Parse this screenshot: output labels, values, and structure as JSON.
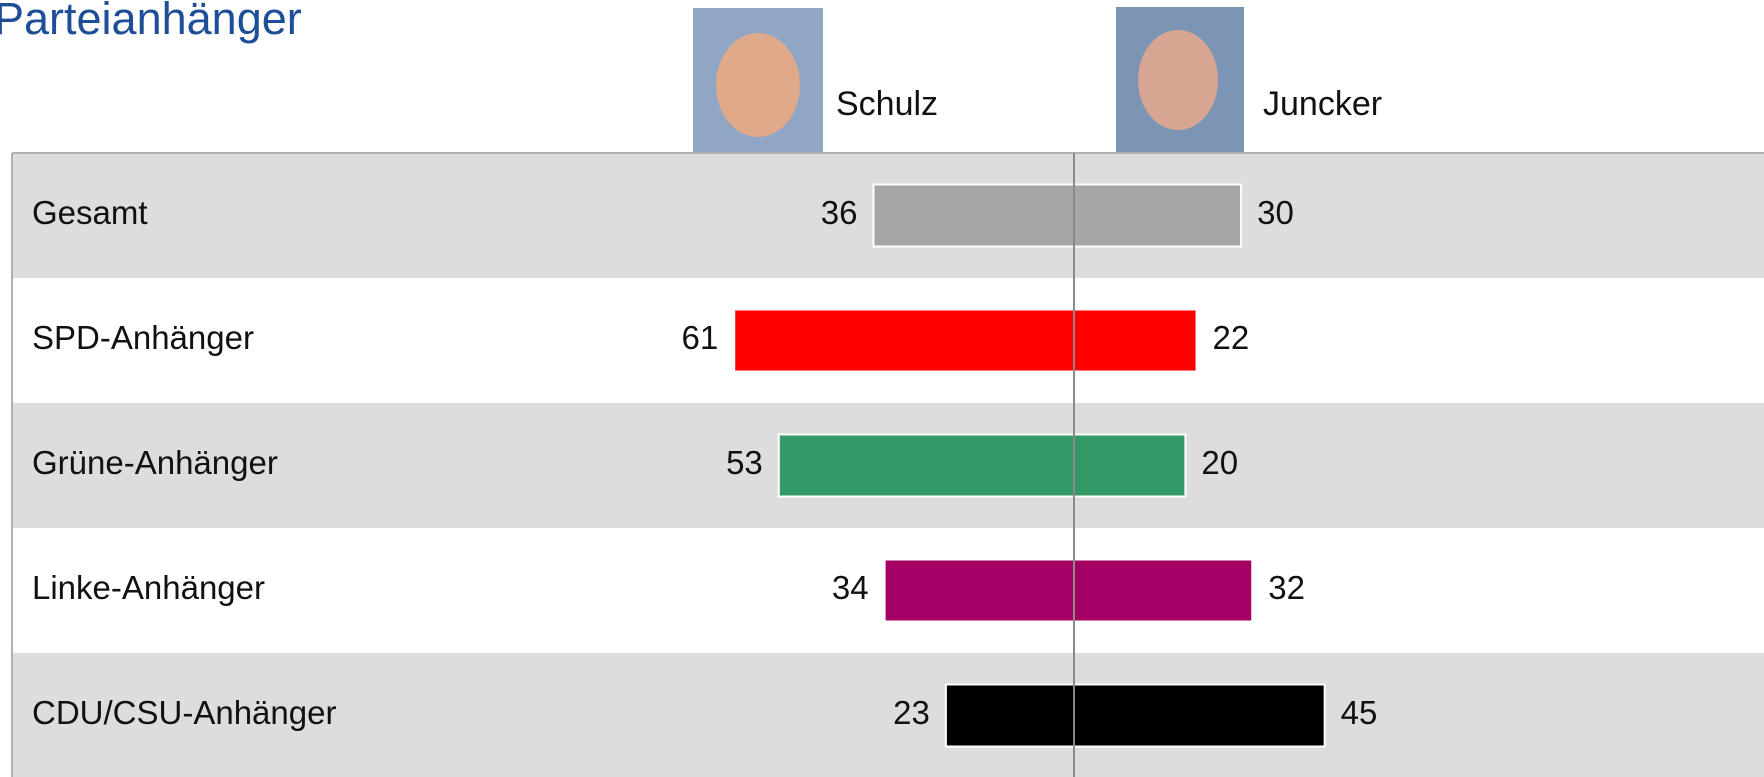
{
  "chart_data": {
    "type": "bar",
    "title": "Parteianhänger",
    "categories": [
      "Gesamt",
      "SPD-Anhänger",
      "Grüne-Anhänger",
      "Linke-Anhänger",
      "CDU/CSU-Anhänger"
    ],
    "colors": [
      "#a6a6a6",
      "#ff0000",
      "#339966",
      "#a50064",
      "#000000"
    ],
    "series": [
      {
        "name": "Schulz",
        "values": [
          36,
          61,
          53,
          34,
          23
        ]
      },
      {
        "name": "Juncker",
        "values": [
          30,
          22,
          20,
          32,
          45
        ]
      }
    ]
  }
}
